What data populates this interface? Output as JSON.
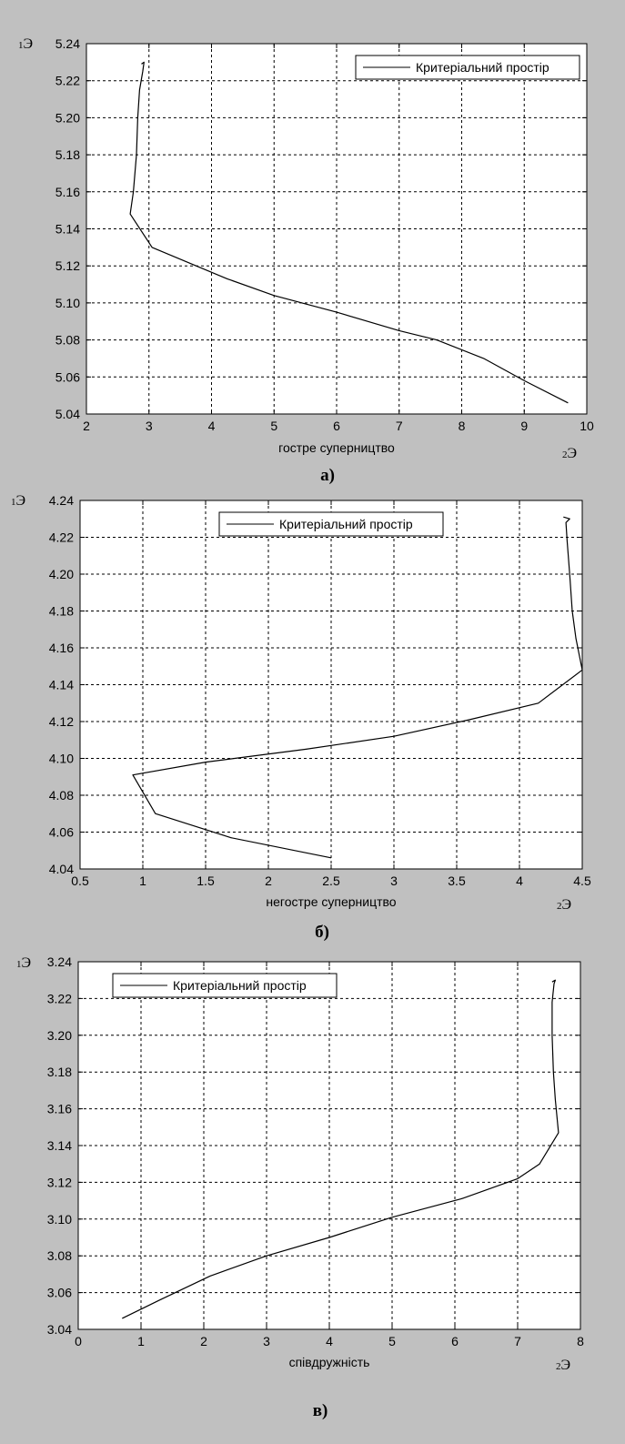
{
  "chart_data": [
    {
      "type": "line",
      "caption": "а)",
      "xlabel": "гостре суперництво",
      "corner_y": {
        "sub": "1",
        "main": "Э"
      },
      "corner_x": {
        "sub": "2",
        "main": "Э"
      },
      "xlim": [
        2,
        10
      ],
      "ylim": [
        5.04,
        5.24
      ],
      "x_ticks": [
        "2",
        "3",
        "4",
        "5",
        "6",
        "7",
        "8",
        "9",
        "10"
      ],
      "y_ticks": [
        "5.04",
        "5.06",
        "5.08",
        "5.10",
        "5.12",
        "5.14",
        "5.16",
        "5.18",
        "5.20",
        "5.22",
        "5.24"
      ],
      "grid": true,
      "legend_position": "top-right",
      "series": [
        {
          "name": "Критеріальний простір",
          "x": [
            9.7,
            9.0,
            8.35,
            7.6,
            7.0,
            6.0,
            5.0,
            4.25,
            3.05,
            2.7,
            2.75,
            2.8,
            2.82,
            2.85,
            2.9,
            2.92,
            2.88
          ],
          "y": [
            5.046,
            5.058,
            5.07,
            5.08,
            5.085,
            5.095,
            5.104,
            5.113,
            5.13,
            5.148,
            5.16,
            5.18,
            5.2,
            5.215,
            5.225,
            5.23,
            5.229
          ]
        }
      ]
    },
    {
      "type": "line",
      "caption": "б)",
      "xlabel": "негостре суперництво",
      "corner_y": {
        "sub": "1",
        "main": "Э"
      },
      "corner_x": {
        "sub": "2",
        "main": "Э"
      },
      "xlim": [
        0.5,
        4.5
      ],
      "ylim": [
        4.04,
        4.24
      ],
      "x_ticks": [
        "0.5",
        "1",
        "1.5",
        "2",
        "2.5",
        "3",
        "3.5",
        "4",
        "4.5"
      ],
      "y_ticks": [
        "4.04",
        "4.06",
        "4.08",
        "4.10",
        "4.12",
        "4.14",
        "4.16",
        "4.18",
        "4.20",
        "4.22",
        "4.24"
      ],
      "grid": true,
      "legend_position": "top-center",
      "series": [
        {
          "name": "Критеріальний простір",
          "x": [
            2.5,
            1.7,
            1.1,
            0.92,
            1.5,
            2.3,
            3.0,
            3.6,
            4.15,
            4.5,
            4.45,
            4.42,
            4.4,
            4.38,
            4.37,
            4.4,
            4.35
          ],
          "y": [
            4.046,
            4.057,
            4.07,
            4.091,
            4.098,
            4.105,
            4.112,
            4.121,
            4.13,
            4.148,
            4.165,
            4.18,
            4.2,
            4.218,
            4.228,
            4.23,
            4.231
          ]
        }
      ]
    },
    {
      "type": "line",
      "caption": "в)",
      "xlabel": "співдружність",
      "corner_y": {
        "sub": "1",
        "main": "Э"
      },
      "corner_x": {
        "sub": "2",
        "main": "Э"
      },
      "xlim": [
        0,
        8
      ],
      "ylim": [
        3.04,
        3.24
      ],
      "x_ticks": [
        "0",
        "1",
        "2",
        "3",
        "4",
        "5",
        "6",
        "7",
        "8"
      ],
      "y_ticks": [
        "3.04",
        "3.06",
        "3.08",
        "3.10",
        "3.12",
        "3.14",
        "3.16",
        "3.18",
        "3.20",
        "3.22",
        "3.24"
      ],
      "grid": true,
      "legend_position": "top-left",
      "series": [
        {
          "name": "Критеріальний простір",
          "x": [
            0.7,
            1.3,
            2.1,
            3.0,
            4.0,
            5.0,
            6.1,
            7.0,
            7.35,
            7.65,
            7.6,
            7.57,
            7.55,
            7.55,
            7.58,
            7.6,
            7.55
          ],
          "y": [
            3.046,
            3.056,
            3.069,
            3.08,
            3.09,
            3.101,
            3.111,
            3.122,
            3.13,
            3.147,
            3.165,
            3.18,
            3.2,
            3.218,
            3.228,
            3.23,
            3.229
          ]
        }
      ]
    }
  ]
}
